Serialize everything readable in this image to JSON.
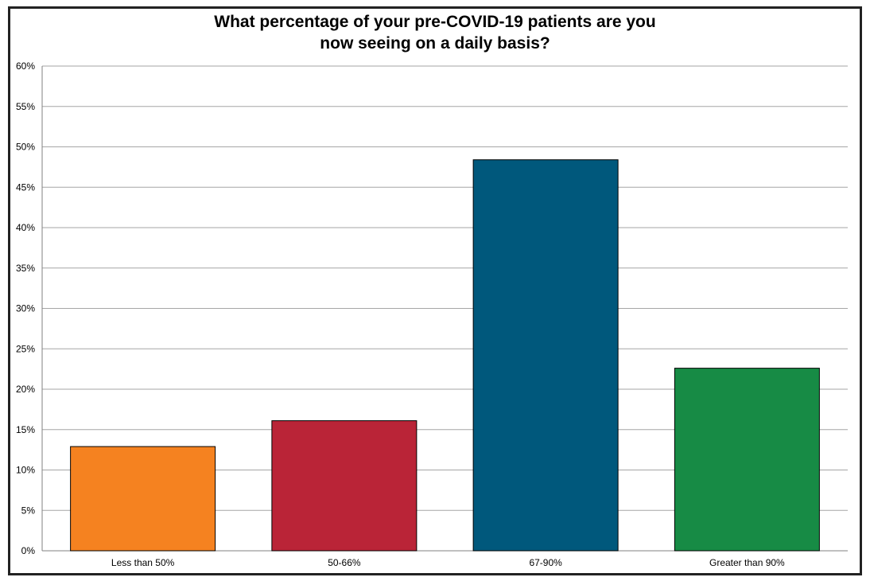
{
  "chart_data": {
    "type": "bar",
    "title": [
      "What percentage of your pre-COVID-19 patients are you",
      "now seeing on a daily basis?"
    ],
    "categories": [
      "Less than 50%",
      "50-66%",
      "67-90%",
      "Greater than 90%"
    ],
    "values": [
      12.9,
      16.1,
      48.4,
      22.6
    ],
    "colors": [
      "#F58220",
      "#BA2437",
      "#00587C",
      "#178B45"
    ],
    "ylim": [
      0,
      60
    ],
    "yticks": [
      "0%",
      "5%",
      "10%",
      "15%",
      "20%",
      "25%",
      "30%",
      "35%",
      "40%",
      "45%",
      "50%",
      "55%",
      "60%"
    ],
    "ytick_step": 5,
    "grid": true,
    "xlabel": "",
    "ylabel": ""
  }
}
